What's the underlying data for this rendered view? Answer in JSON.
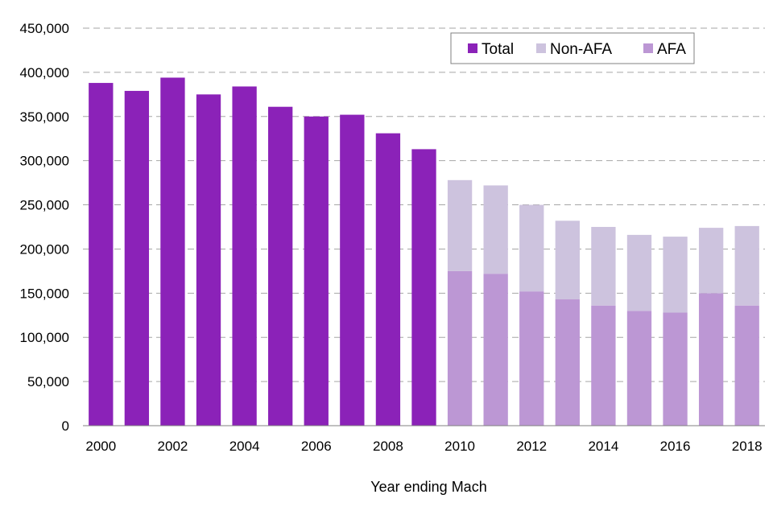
{
  "chart_data": {
    "type": "bar",
    "stacked": true,
    "title": "",
    "xlabel": "Year ending Mach",
    "ylabel": "",
    "ylim": [
      0,
      450000
    ],
    "yticks": [
      0,
      50000,
      100000,
      150000,
      200000,
      250000,
      300000,
      350000,
      400000,
      450000
    ],
    "ytick_labels": [
      "0",
      "50,000",
      "100,000",
      "150,000",
      "200,000",
      "250,000",
      "300,000",
      "350,000",
      "400,000",
      "450,000"
    ],
    "grid": true,
    "legend_position": "top-right",
    "categories": [
      "2000",
      "2001",
      "2002",
      "2003",
      "2004",
      "2005",
      "2006",
      "2007",
      "2008",
      "2009",
      "2010",
      "2011",
      "2012",
      "2013",
      "2014",
      "2015",
      "2016",
      "2017",
      "2018"
    ],
    "xtick_labels": [
      "2000",
      "",
      "2002",
      "",
      "2004",
      "",
      "2006",
      "",
      "2008",
      "",
      "2010",
      "",
      "2012",
      "",
      "2014",
      "",
      "2016",
      "",
      "2018"
    ],
    "series": [
      {
        "name": "Total",
        "color": "#8b22b8",
        "values": [
          388000,
          379000,
          394000,
          375000,
          384000,
          361000,
          350000,
          352000,
          331000,
          313000,
          null,
          null,
          null,
          null,
          null,
          null,
          null,
          null,
          null
        ]
      },
      {
        "name": "AFA",
        "color": "#bc97d4",
        "values": [
          null,
          null,
          null,
          null,
          null,
          null,
          null,
          null,
          null,
          null,
          175000,
          172000,
          152000,
          143000,
          136000,
          130000,
          128000,
          150000,
          136000
        ]
      },
      {
        "name": "Non-AFA",
        "color": "#cdc3de",
        "values": [
          null,
          null,
          null,
          null,
          null,
          null,
          null,
          null,
          null,
          null,
          103000,
          100000,
          98000,
          89000,
          89000,
          86000,
          86000,
          74000,
          90000
        ]
      }
    ],
    "legend": [
      "Total",
      "Non-AFA",
      "AFA"
    ]
  }
}
